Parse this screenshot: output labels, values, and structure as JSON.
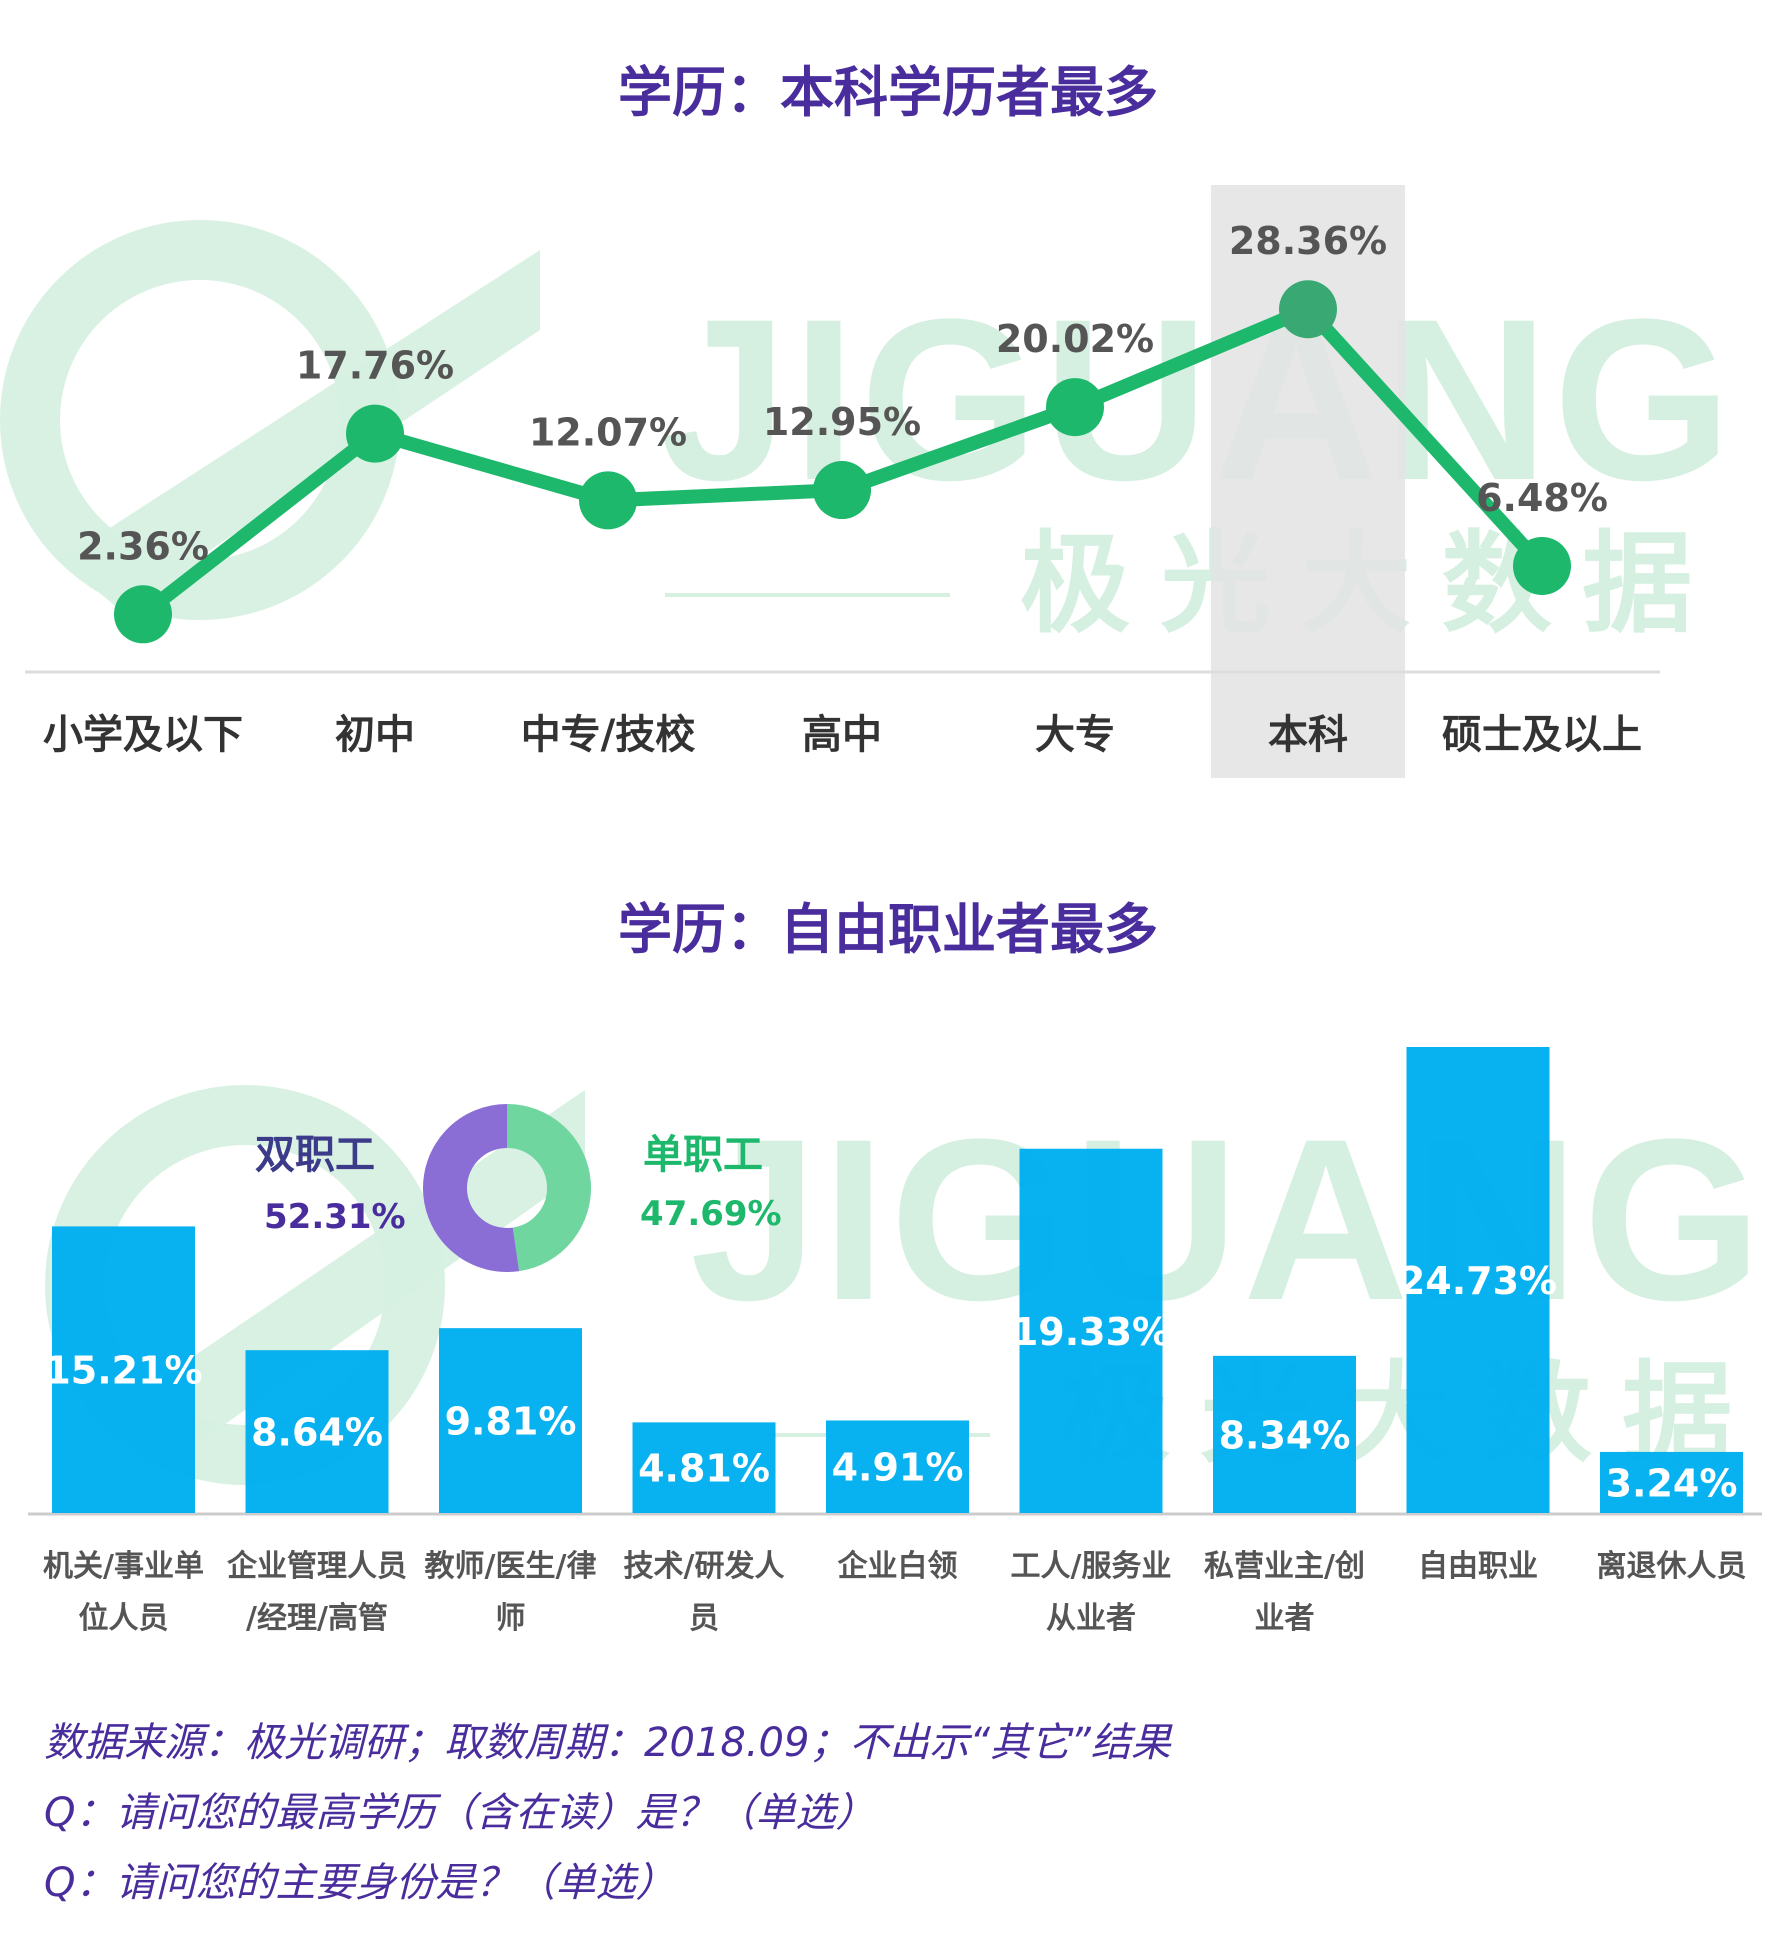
{
  "watermark": {
    "brand": "JIGUANG",
    "cn": "极 光 大 数 据"
  },
  "colors": {
    "title": "#4a2d9c",
    "line": "#1db86c",
    "bar": "#00aeef",
    "highlight_band": "#e3e3e3",
    "ring_double": "#8a6ed6",
    "ring_single": "#6fd6a0",
    "watermark": "#d5efe0",
    "label_dark": "#555555"
  },
  "chart_data": [
    {
      "type": "line",
      "title": "学历：本科学历者最多",
      "categories": [
        "小学及以下",
        "初中",
        "中专/技校",
        "高中",
        "大专",
        "本科",
        "硕士及以上"
      ],
      "values": [
        2.36,
        17.76,
        12.07,
        12.95,
        20.02,
        28.36,
        6.48
      ],
      "labels": [
        "2.36%",
        "17.76%",
        "12.07%",
        "12.95%",
        "20.02%",
        "28.36%",
        "6.48%"
      ],
      "highlight": "本科",
      "ylim": [
        0,
        30
      ],
      "xlabel": "",
      "ylabel": "",
      "grid": false
    },
    {
      "type": "bar",
      "title": "学历：自由职业者最多",
      "categories": [
        [
          "机关/事业单",
          "位人员"
        ],
        [
          "企业管理人员",
          "/经理/高管"
        ],
        [
          "教师/医生/律",
          "师"
        ],
        [
          "技术/研发人",
          "员"
        ],
        [
          "企业白领"
        ],
        [
          "工人/服务业",
          "从业者"
        ],
        [
          "私营业主/创",
          "业者"
        ],
        [
          "自由职业"
        ],
        [
          "离退休人员"
        ]
      ],
      "values": [
        15.21,
        8.64,
        9.81,
        4.81,
        4.91,
        19.33,
        8.34,
        24.73,
        3.24
      ],
      "labels": [
        "15.21%",
        "8.64%",
        "9.81%",
        "4.81%",
        "4.91%",
        "19.33%",
        "8.34%",
        "24.73%",
        "3.24%"
      ],
      "ylim": [
        0,
        26
      ],
      "xlabel": "",
      "ylabel": "",
      "grid": false
    },
    {
      "type": "pie",
      "style": "donut",
      "slices": [
        {
          "name": "双职工",
          "value": 52.31,
          "label": "52.31%"
        },
        {
          "name": "单职工",
          "value": 47.69,
          "label": "47.69%"
        }
      ]
    }
  ],
  "notes": [
    "数据来源：极光调研；取数周期：2018.09；不出示“其它”结果",
    "Q：请问您的最高学历（含在读）是？（单选）",
    "Q：请问您的主要身份是？（单选）"
  ]
}
